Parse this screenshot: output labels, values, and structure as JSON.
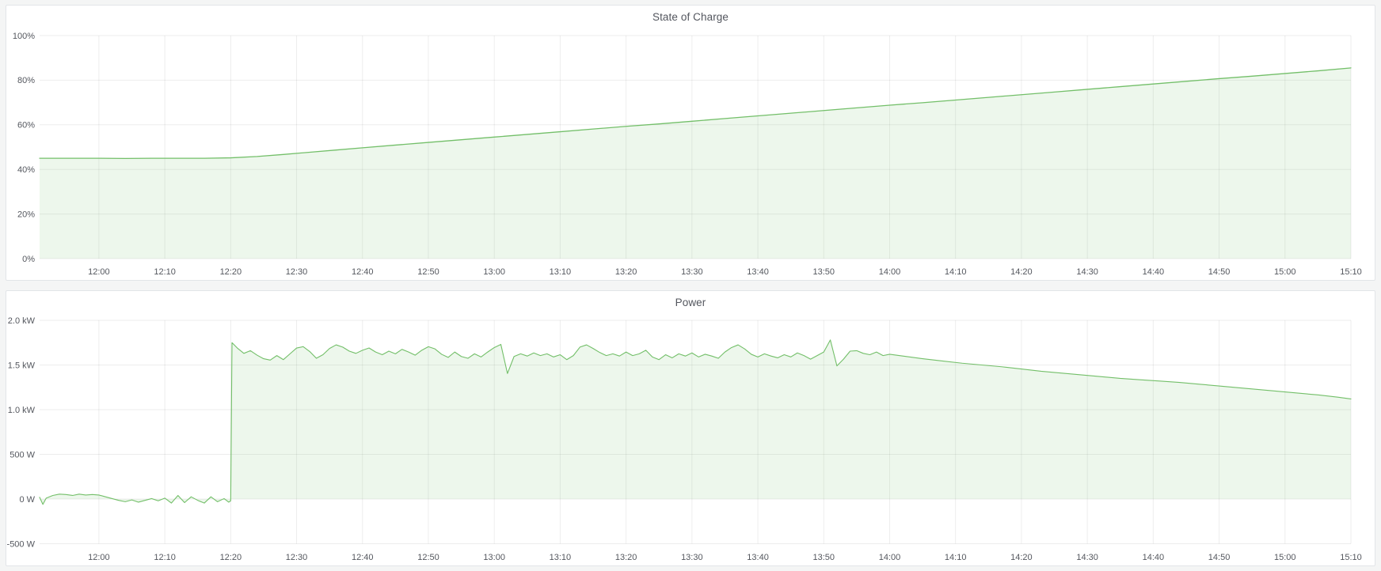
{
  "page": {
    "background": "#f4f5f5",
    "panel_background": "#ffffff",
    "panel_border": "#e2e5e8"
  },
  "panels": [
    {
      "title": "State of Charge"
    },
    {
      "title": "Power"
    }
  ],
  "chart_data": [
    {
      "type": "area",
      "title": "State of Charge",
      "unit": "percent",
      "legend": "none",
      "grid": true,
      "line_color": "#73bf69",
      "fill_color": "rgba(115,191,105,0.13)",
      "grid_color": "rgba(0,0,0,0.07)",
      "tick_color": "#54575e",
      "x_range_minutes": [
        711,
        910
      ],
      "y_range": [
        0,
        100
      ],
      "fill_to": 0,
      "x_ticks": [
        {
          "t": 720,
          "label": "12:00"
        },
        {
          "t": 730,
          "label": "12:10"
        },
        {
          "t": 740,
          "label": "12:20"
        },
        {
          "t": 750,
          "label": "12:30"
        },
        {
          "t": 760,
          "label": "12:40"
        },
        {
          "t": 770,
          "label": "12:50"
        },
        {
          "t": 780,
          "label": "13:00"
        },
        {
          "t": 790,
          "label": "13:10"
        },
        {
          "t": 800,
          "label": "13:20"
        },
        {
          "t": 810,
          "label": "13:30"
        },
        {
          "t": 820,
          "label": "13:40"
        },
        {
          "t": 830,
          "label": "13:50"
        },
        {
          "t": 840,
          "label": "14:00"
        },
        {
          "t": 850,
          "label": "14:10"
        },
        {
          "t": 860,
          "label": "14:20"
        },
        {
          "t": 870,
          "label": "14:30"
        },
        {
          "t": 880,
          "label": "14:40"
        },
        {
          "t": 890,
          "label": "14:50"
        },
        {
          "t": 900,
          "label": "15:00"
        },
        {
          "t": 910,
          "label": "15:10"
        }
      ],
      "y_ticks": [
        {
          "v": 100,
          "label": "100%"
        },
        {
          "v": 80,
          "label": "80%"
        },
        {
          "v": 60,
          "label": "60%"
        },
        {
          "v": 40,
          "label": "40%"
        },
        {
          "v": 20,
          "label": "20%"
        },
        {
          "v": 0,
          "label": "0%"
        }
      ],
      "series": [
        {
          "name": "State of Charge",
          "points": [
            [
              711,
              45
            ],
            [
              716,
              45
            ],
            [
              720,
              45
            ],
            [
              724,
              44.9
            ],
            [
              728,
              45
            ],
            [
              732,
              45
            ],
            [
              736,
              45
            ],
            [
              740,
              45.2
            ],
            [
              744,
              45.8
            ],
            [
              748,
              46.7
            ],
            [
              752,
              47.7
            ],
            [
              756,
              48.7
            ],
            [
              760,
              49.7
            ],
            [
              765,
              50.9
            ],
            [
              770,
              52.1
            ],
            [
              775,
              53.3
            ],
            [
              780,
              54.5
            ],
            [
              785,
              55.7
            ],
            [
              790,
              56.9
            ],
            [
              795,
              58.1
            ],
            [
              800,
              59.3
            ],
            [
              805,
              60.4
            ],
            [
              810,
              61.6
            ],
            [
              815,
              62.8
            ],
            [
              820,
              64.0
            ],
            [
              825,
              65.2
            ],
            [
              830,
              66.4
            ],
            [
              835,
              67.6
            ],
            [
              840,
              68.8
            ],
            [
              845,
              69.9
            ],
            [
              850,
              71.1
            ],
            [
              855,
              72.3
            ],
            [
              860,
              73.5
            ],
            [
              865,
              74.7
            ],
            [
              870,
              75.9
            ],
            [
              875,
              77.1
            ],
            [
              880,
              78.3
            ],
            [
              885,
              79.5
            ],
            [
              890,
              80.7
            ],
            [
              895,
              81.8
            ],
            [
              900,
              83.0
            ],
            [
              905,
              84.2
            ],
            [
              910,
              85.5
            ]
          ]
        }
      ]
    },
    {
      "type": "area",
      "title": "Power",
      "unit": "watt",
      "legend": "none",
      "grid": true,
      "line_color": "#73bf69",
      "fill_color": "rgba(115,191,105,0.13)",
      "grid_color": "rgba(0,0,0,0.07)",
      "tick_color": "#54575e",
      "x_range_minutes": [
        711,
        910
      ],
      "y_range": [
        -500,
        2000
      ],
      "fill_to": 0,
      "x_ticks": [
        {
          "t": 720,
          "label": "12:00"
        },
        {
          "t": 730,
          "label": "12:10"
        },
        {
          "t": 740,
          "label": "12:20"
        },
        {
          "t": 750,
          "label": "12:30"
        },
        {
          "t": 760,
          "label": "12:40"
        },
        {
          "t": 770,
          "label": "12:50"
        },
        {
          "t": 780,
          "label": "13:00"
        },
        {
          "t": 790,
          "label": "13:10"
        },
        {
          "t": 800,
          "label": "13:20"
        },
        {
          "t": 810,
          "label": "13:30"
        },
        {
          "t": 820,
          "label": "13:40"
        },
        {
          "t": 830,
          "label": "13:50"
        },
        {
          "t": 840,
          "label": "14:00"
        },
        {
          "t": 850,
          "label": "14:10"
        },
        {
          "t": 860,
          "label": "14:20"
        },
        {
          "t": 870,
          "label": "14:30"
        },
        {
          "t": 880,
          "label": "14:40"
        },
        {
          "t": 890,
          "label": "14:50"
        },
        {
          "t": 900,
          "label": "15:00"
        },
        {
          "t": 910,
          "label": "15:10"
        }
      ],
      "y_ticks": [
        {
          "v": 2000,
          "label": "2.0 kW"
        },
        {
          "v": 1500,
          "label": "1.5 kW"
        },
        {
          "v": 1000,
          "label": "1.0 kW"
        },
        {
          "v": 500,
          "label": "500 W"
        },
        {
          "v": 0,
          "label": "0 W"
        },
        {
          "v": -500,
          "label": "-500 W"
        }
      ],
      "series": [
        {
          "name": "Power",
          "points": [
            [
              711,
              20
            ],
            [
              711.5,
              -60
            ],
            [
              712,
              10
            ],
            [
              713,
              40
            ],
            [
              714,
              55
            ],
            [
              715,
              50
            ],
            [
              716,
              40
            ],
            [
              717,
              55
            ],
            [
              718,
              45
            ],
            [
              719,
              50
            ],
            [
              720,
              45
            ],
            [
              721,
              25
            ],
            [
              722,
              5
            ],
            [
              723,
              -15
            ],
            [
              724,
              -30
            ],
            [
              725,
              -10
            ],
            [
              726,
              -35
            ],
            [
              727,
              -15
            ],
            [
              728,
              5
            ],
            [
              729,
              -20
            ],
            [
              730,
              10
            ],
            [
              731,
              -45
            ],
            [
              732,
              40
            ],
            [
              733,
              -40
            ],
            [
              734,
              25
            ],
            [
              735,
              -15
            ],
            [
              736,
              -45
            ],
            [
              737,
              25
            ],
            [
              738,
              -30
            ],
            [
              739,
              5
            ],
            [
              739.7,
              -35
            ],
            [
              740,
              -20
            ],
            [
              740.2,
              1750
            ],
            [
              741,
              1690
            ],
            [
              742,
              1630
            ],
            [
              743,
              1660
            ],
            [
              744,
              1610
            ],
            [
              745,
              1570
            ],
            [
              746,
              1555
            ],
            [
              747,
              1605
            ],
            [
              748,
              1560
            ],
            [
              749,
              1625
            ],
            [
              750,
              1690
            ],
            [
              751,
              1705
            ],
            [
              752,
              1650
            ],
            [
              753,
              1575
            ],
            [
              754,
              1615
            ],
            [
              755,
              1685
            ],
            [
              756,
              1725
            ],
            [
              757,
              1700
            ],
            [
              758,
              1655
            ],
            [
              759,
              1630
            ],
            [
              760,
              1665
            ],
            [
              761,
              1690
            ],
            [
              762,
              1645
            ],
            [
              763,
              1615
            ],
            [
              764,
              1655
            ],
            [
              765,
              1625
            ],
            [
              766,
              1675
            ],
            [
              767,
              1645
            ],
            [
              768,
              1610
            ],
            [
              769,
              1665
            ],
            [
              770,
              1705
            ],
            [
              771,
              1680
            ],
            [
              772,
              1620
            ],
            [
              773,
              1585
            ],
            [
              774,
              1645
            ],
            [
              775,
              1595
            ],
            [
              776,
              1575
            ],
            [
              777,
              1625
            ],
            [
              778,
              1590
            ],
            [
              779,
              1645
            ],
            [
              780,
              1695
            ],
            [
              781,
              1730
            ],
            [
              782,
              1405
            ],
            [
              783,
              1595
            ],
            [
              784,
              1625
            ],
            [
              785,
              1600
            ],
            [
              786,
              1635
            ],
            [
              787,
              1605
            ],
            [
              788,
              1625
            ],
            [
              789,
              1590
            ],
            [
              790,
              1615
            ],
            [
              791,
              1560
            ],
            [
              792,
              1605
            ],
            [
              793,
              1700
            ],
            [
              794,
              1725
            ],
            [
              795,
              1685
            ],
            [
              796,
              1640
            ],
            [
              797,
              1605
            ],
            [
              798,
              1625
            ],
            [
              799,
              1600
            ],
            [
              800,
              1645
            ],
            [
              801,
              1605
            ],
            [
              802,
              1625
            ],
            [
              803,
              1665
            ],
            [
              804,
              1590
            ],
            [
              805,
              1560
            ],
            [
              806,
              1615
            ],
            [
              807,
              1580
            ],
            [
              808,
              1625
            ],
            [
              809,
              1600
            ],
            [
              810,
              1635
            ],
            [
              811,
              1590
            ],
            [
              812,
              1620
            ],
            [
              813,
              1600
            ],
            [
              814,
              1575
            ],
            [
              815,
              1645
            ],
            [
              816,
              1695
            ],
            [
              817,
              1725
            ],
            [
              818,
              1680
            ],
            [
              819,
              1620
            ],
            [
              820,
              1590
            ],
            [
              821,
              1625
            ],
            [
              822,
              1600
            ],
            [
              823,
              1580
            ],
            [
              824,
              1615
            ],
            [
              825,
              1590
            ],
            [
              826,
              1635
            ],
            [
              827,
              1605
            ],
            [
              828,
              1565
            ],
            [
              829,
              1605
            ],
            [
              830,
              1645
            ],
            [
              831,
              1780
            ],
            [
              832,
              1490
            ],
            [
              833,
              1565
            ],
            [
              834,
              1655
            ],
            [
              835,
              1660
            ],
            [
              836,
              1630
            ],
            [
              837,
              1615
            ],
            [
              838,
              1645
            ],
            [
              839,
              1605
            ],
            [
              840,
              1620
            ],
            [
              842,
              1600
            ],
            [
              845,
              1570
            ],
            [
              848,
              1545
            ],
            [
              851,
              1520
            ],
            [
              854,
              1500
            ],
            [
              857,
              1480
            ],
            [
              860,
              1455
            ],
            [
              863,
              1430
            ],
            [
              866,
              1410
            ],
            [
              869,
              1390
            ],
            [
              872,
              1370
            ],
            [
              875,
              1350
            ],
            [
              878,
              1335
            ],
            [
              881,
              1320
            ],
            [
              884,
              1305
            ],
            [
              887,
              1285
            ],
            [
              890,
              1265
            ],
            [
              893,
              1245
            ],
            [
              896,
              1225
            ],
            [
              899,
              1205
            ],
            [
              902,
              1185
            ],
            [
              905,
              1165
            ],
            [
              908,
              1140
            ],
            [
              910,
              1120
            ]
          ]
        }
      ]
    }
  ]
}
